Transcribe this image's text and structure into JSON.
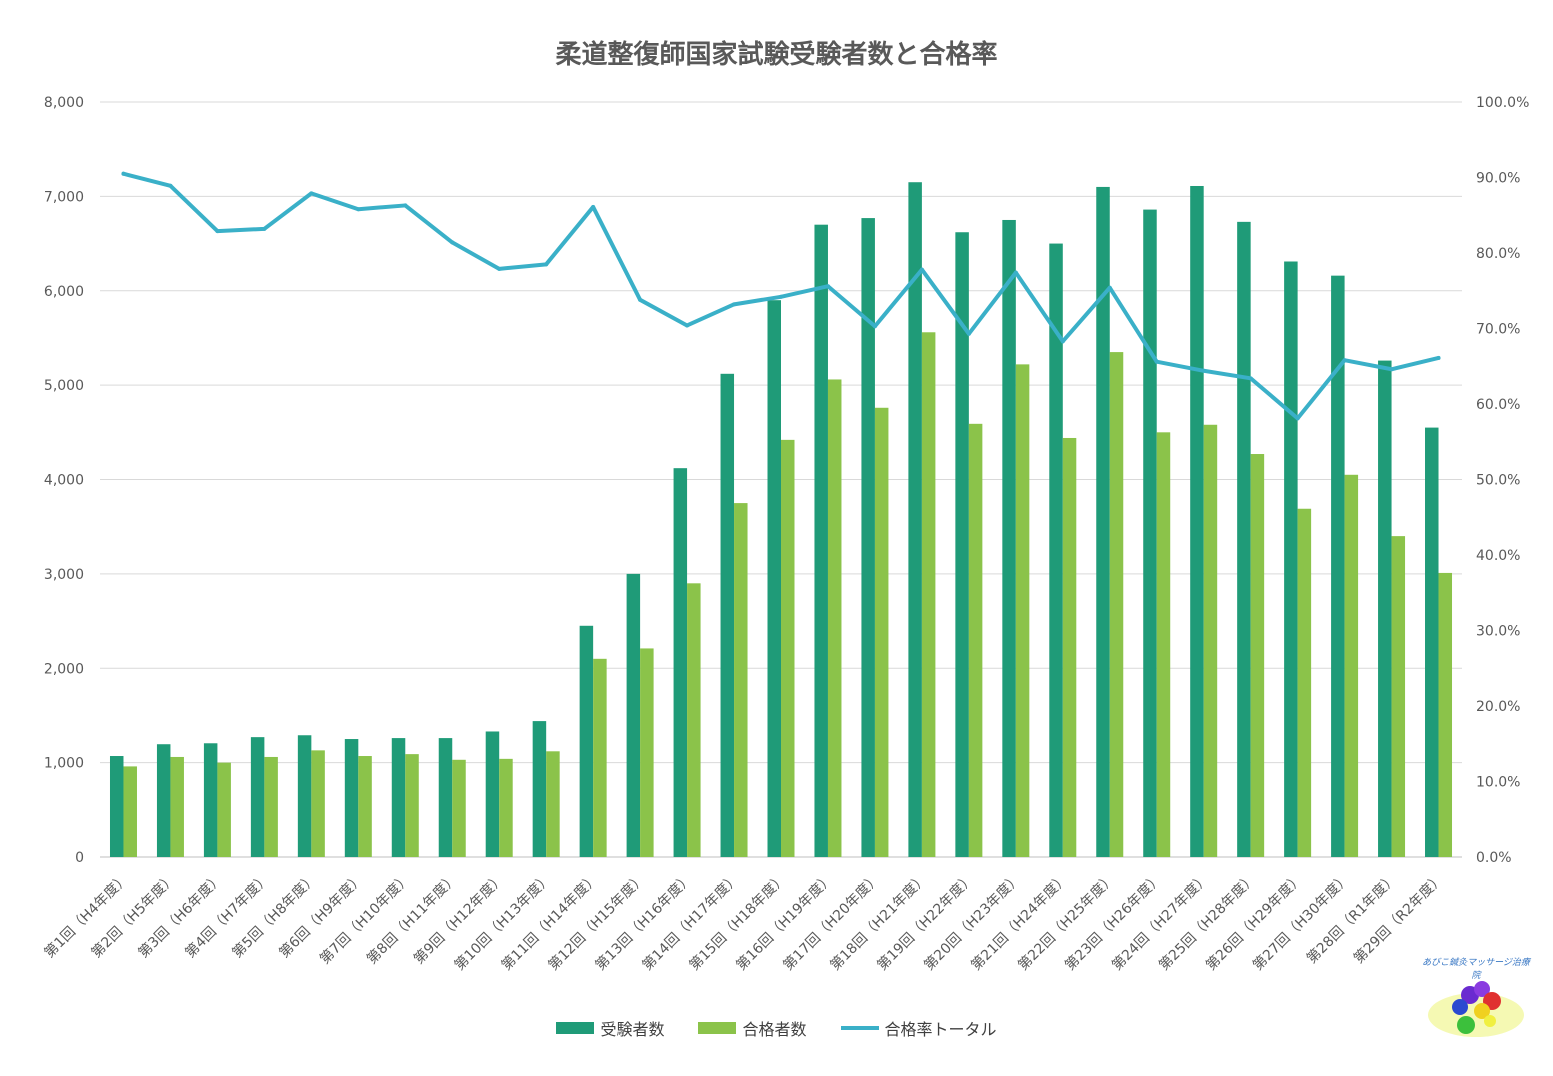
{
  "chart_data": {
    "type": "bar",
    "title": "柔道整復師国家試験受験者数と合格率",
    "categories": [
      "第1回（H4年度）",
      "第2回（H5年度）",
      "第3回（H6年度）",
      "第4回（H7年度）",
      "第5回（H8年度）",
      "第6回（H9年度）",
      "第7回（H10年度）",
      "第8回（H11年度）",
      "第9回（H12年度）",
      "第10回（H13年度）",
      "第11回（H14年度）",
      "第12回（H15年度）",
      "第13回（H16年度）",
      "第14回（H17年度）",
      "第15回（H18年度）",
      "第16回（H19年度）",
      "第17回（H20年度）",
      "第18回（H21年度）",
      "第19回（H22年度）",
      "第20回（H23年度）",
      "第21回（H24年度）",
      "第22回（H25年度）",
      "第23回（H26年度）",
      "第24回（H27年度）",
      "第25回（H28年度）",
      "第26回（H29年度）",
      "第27回（H30年度）",
      "第28回（R1年度）",
      "第29回（R2年度）"
    ],
    "series": [
      {
        "name": "受験者数",
        "type": "bar",
        "axis": "left",
        "color": "#1f9b78",
        "values": [
          1070,
          1195,
          1205,
          1270,
          1290,
          1250,
          1260,
          1260,
          1330,
          1440,
          2450,
          3000,
          4120,
          5120,
          5900,
          6700,
          6770,
          7150,
          6620,
          6750,
          6500,
          7100,
          6860,
          7110,
          6730,
          6310,
          6160,
          5260,
          4550
        ]
      },
      {
        "name": "合格者数",
        "type": "bar",
        "axis": "left",
        "color": "#8bc34a",
        "values": [
          960,
          1060,
          1000,
          1060,
          1130,
          1070,
          1090,
          1030,
          1040,
          1120,
          2100,
          2210,
          2900,
          3750,
          4420,
          5060,
          4760,
          5560,
          4590,
          5220,
          4440,
          5350,
          4500,
          4580,
          4270,
          3690,
          4050,
          3400,
          3010
        ]
      },
      {
        "name": "合格率トータル",
        "type": "line",
        "axis": "right",
        "color": "#3ab0c8",
        "values": [
          90.5,
          88.9,
          82.9,
          83.2,
          87.9,
          85.8,
          86.3,
          81.4,
          77.9,
          78.5,
          86.1,
          73.8,
          70.4,
          73.2,
          74.2,
          75.6,
          70.3,
          77.8,
          69.3,
          77.4,
          68.3,
          75.4,
          65.6,
          64.4,
          63.4,
          58.1,
          65.8,
          64.6,
          66.1
        ]
      }
    ],
    "y_left": {
      "min": 0,
      "max": 8000,
      "ticks": [
        "0",
        "1,000",
        "2,000",
        "3,000",
        "4,000",
        "5,000",
        "6,000",
        "7,000",
        "8,000"
      ]
    },
    "y_right": {
      "min": 0,
      "max": 100,
      "ticks": [
        "0.0%",
        "10.0%",
        "20.0%",
        "30.0%",
        "40.0%",
        "50.0%",
        "60.0%",
        "70.0%",
        "80.0%",
        "90.0%",
        "100.0%"
      ]
    },
    "grid": true,
    "legend_position": "bottom"
  },
  "watermark": {
    "text": "あびこ鍼灸マッサージ治療院"
  }
}
